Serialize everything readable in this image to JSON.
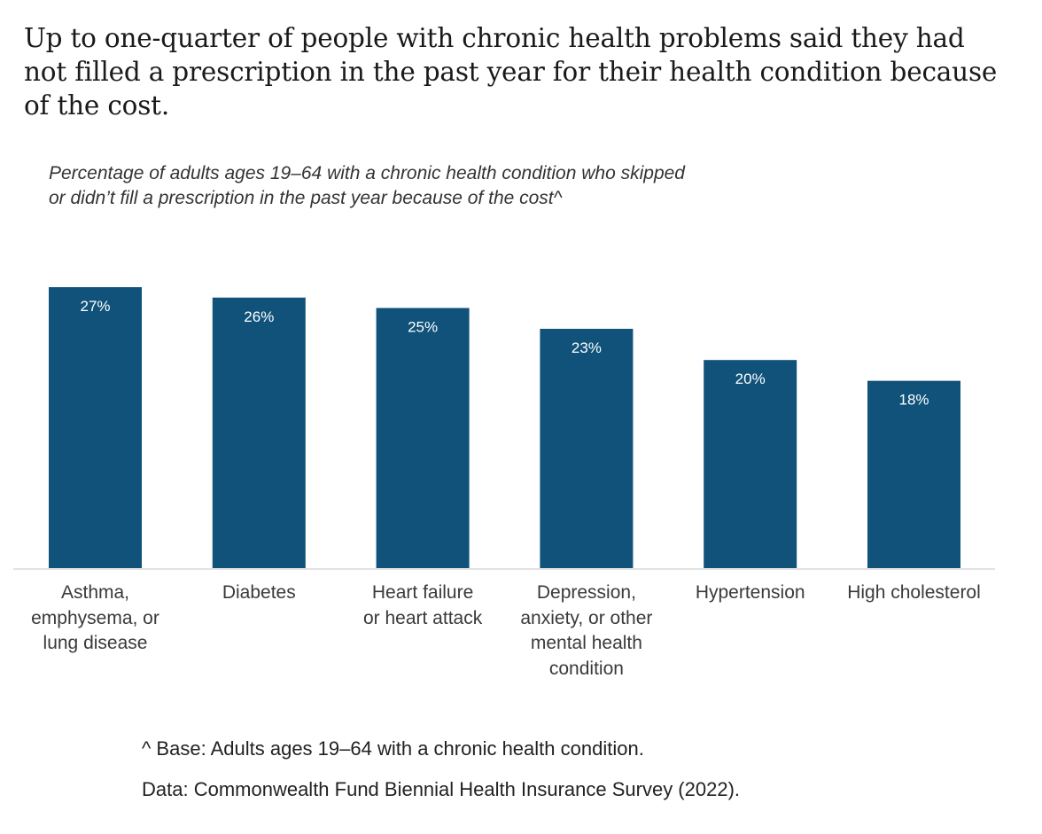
{
  "headline": "Up to one-quarter of people with chronic health problems said they had not filled a prescription in the past year for their health condition because of the cost.",
  "headline_lines": [
    "Up to one-quarter of people with chronic health problems said they had",
    "not filled a prescription in the past year for their health condition because",
    "of the cost."
  ],
  "subtitle_lines": [
    "Percentage of adults ages 19–64 with a chronic health condition who skipped",
    "or didn’t fill a prescription in the past year because of the cost^"
  ],
  "footnotes": {
    "base": "^ Base: Adults ages 19–64 with a chronic health condition.",
    "source": "Data: Commonwealth Fund Biennial Health Insurance Survey (2022)."
  },
  "colors": {
    "bar": "#10527a",
    "baseline": "#d9d9d9",
    "bar_label": "#ffffff"
  },
  "chart_data": {
    "type": "bar",
    "title": "Percentage of adults ages 19–64 with a chronic health condition who skipped or didn’t fill a prescription in the past year because of the cost^",
    "xlabel": "",
    "ylabel": "",
    "ylim": [
      0,
      27
    ],
    "grid": false,
    "legend": "none",
    "categories": [
      "Asthma, emphysema, or lung disease",
      "Diabetes",
      "Heart failure or heart attack",
      "Depression, anxiety, or other mental health condition",
      "Hypertension",
      "High cholesterol"
    ],
    "category_lines": [
      [
        "Asthma,",
        "emphysema, or",
        "lung disease"
      ],
      [
        "Diabetes"
      ],
      [
        "Heart failure",
        "or heart attack"
      ],
      [
        "Depression,",
        "anxiety, or other",
        "mental health",
        "condition"
      ],
      [
        "Hypertension"
      ],
      [
        "High cholesterol"
      ]
    ],
    "values": [
      27,
      26,
      25,
      23,
      20,
      18
    ],
    "data_labels": [
      "27%",
      "26%",
      "25%",
      "23%",
      "20%",
      "18%"
    ],
    "unit": "%"
  }
}
